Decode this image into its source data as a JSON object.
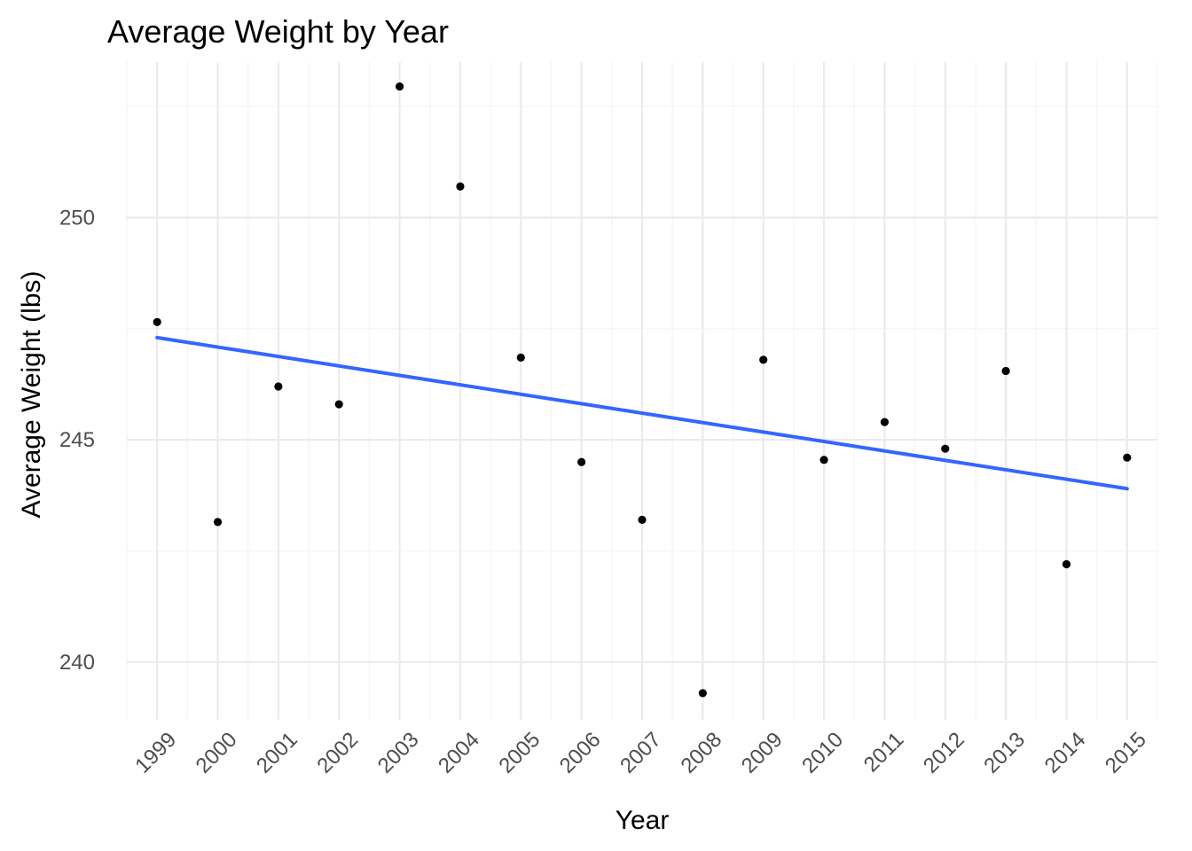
{
  "chart_data": {
    "type": "scatter",
    "title": "Average Weight by Year",
    "xlabel": "Year",
    "ylabel": "Average Weight (lbs)",
    "x": [
      1999,
      2000,
      2001,
      2002,
      2003,
      2004,
      2005,
      2006,
      2007,
      2008,
      2009,
      2010,
      2011,
      2012,
      2013,
      2014,
      2015
    ],
    "series": [
      {
        "values": [
          247.65,
          243.15,
          246.2,
          245.8,
          252.95,
          250.7,
          246.85,
          244.5,
          243.2,
          239.3,
          246.8,
          244.55,
          245.4,
          244.8,
          246.55,
          242.2,
          244.6
        ],
        "color": "#000000"
      }
    ],
    "trend_line": {
      "type": "linear",
      "color": "#3366ff",
      "start": [
        1999,
        247.3
      ],
      "end": [
        2015,
        243.9
      ]
    },
    "x_ticks": [
      "1999",
      "2000",
      "2001",
      "2002",
      "2003",
      "2004",
      "2005",
      "2006",
      "2007",
      "2008",
      "2009",
      "2010",
      "2011",
      "2012",
      "2013",
      "2014",
      "2015"
    ],
    "y_ticks": [
      "240",
      "245",
      "250"
    ],
    "xlim": [
      1998.5,
      2015.5
    ],
    "ylim": [
      238.7,
      253.5
    ],
    "grid": true,
    "legend": "none"
  }
}
